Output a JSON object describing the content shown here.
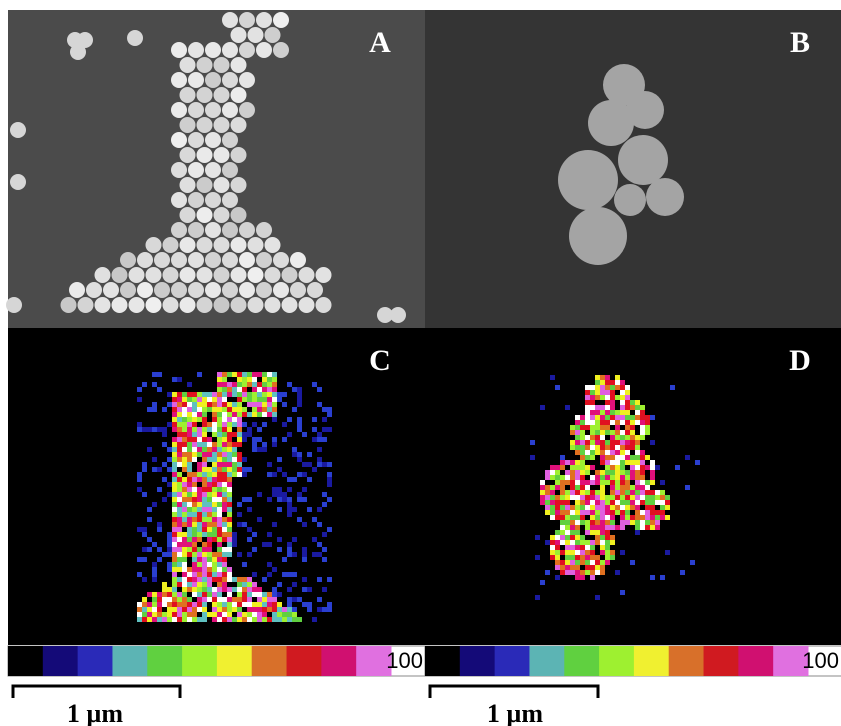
{
  "panels": [
    {
      "label": "A"
    },
    {
      "label": "B"
    },
    {
      "label": "C"
    },
    {
      "label": "D"
    }
  ],
  "colorbars": [
    {
      "label": "100"
    },
    {
      "label": "100"
    }
  ],
  "scale_bars": [
    {
      "label": "1 µm"
    },
    {
      "label": "1 µm"
    }
  ]
}
